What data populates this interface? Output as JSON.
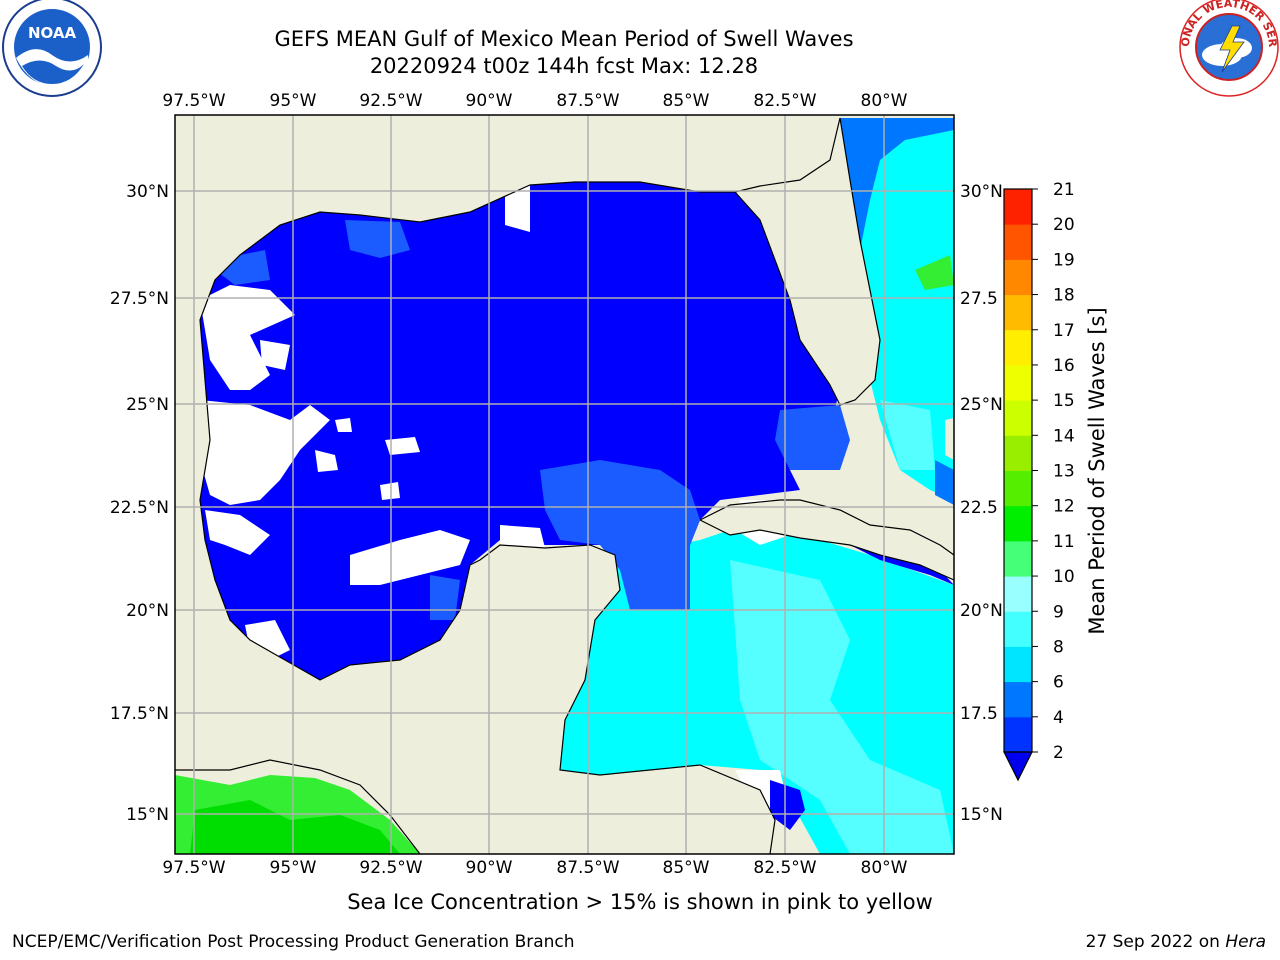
{
  "title": {
    "line1": "GEFS MEAN Gulf of Mexico Mean Period of Swell Waves",
    "line2": "20220924 t00z 144h fcst   Max: 12.28"
  },
  "longitude_labels": [
    "97.5°W",
    "95°W",
    "92.5°W",
    "90°W",
    "87.5°W",
    "85°W",
    "82.5°W",
    "80°W"
  ],
  "latitude_labels_left": [
    "30°N",
    "27.5°N",
    "25°N",
    "22.5°N",
    "20°N",
    "17.5°N",
    "15°N"
  ],
  "latitude_labels_right": [
    "30°N",
    "27.5",
    "25°N",
    "22.5",
    "20°N",
    "17.5",
    "15°N"
  ],
  "colorbar": {
    "label": "Mean Period of Swell Waves [s]",
    "ticks": [
      "2",
      "4",
      "6",
      "8",
      "9",
      "10",
      "11",
      "12",
      "13",
      "14",
      "15",
      "16",
      "17",
      "18",
      "19",
      "20",
      "21"
    ],
    "colors": [
      "#0033ff",
      "#0077ff",
      "#00e5ff",
      "#44ffff",
      "#99ffff",
      "#44ff77",
      "#00ee00",
      "#55ee00",
      "#99ee00",
      "#ccff00",
      "#eeff00",
      "#ffee00",
      "#ffbb00",
      "#ff8800",
      "#ff5500",
      "#ff2200",
      "#ff0000"
    ],
    "extend_color": "#0000ee"
  },
  "map_colors": {
    "land": "#eeeedd",
    "deep_blue": "#0000ff",
    "mid_blue": "#1a5cff",
    "cyan": "#00ffff",
    "light_cyan": "#55ffff",
    "green": "#33ee33",
    "grid": "#b0b0b0"
  },
  "ice_note": "Sea Ice Concentration > 15% is shown in pink to yellow",
  "footer": {
    "left": "NCEP/EMC/Verification Post Processing Product Generation Branch",
    "right_date": "27 Sep 2022 on ",
    "right_host": "Hera"
  },
  "logos": {
    "noaa_text": "NOAA",
    "nws_text": "NATIONAL WEATHER SERVICE"
  }
}
